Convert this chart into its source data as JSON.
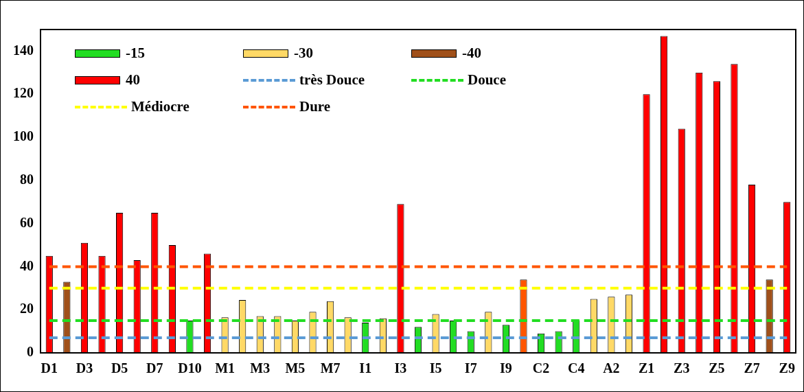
{
  "chart_data": {
    "type": "bar",
    "categories": [
      "D1",
      null,
      "D3",
      null,
      "D5",
      null,
      "D7",
      null,
      "D10",
      null,
      "M1",
      null,
      "M3",
      null,
      "M5",
      null,
      "M7",
      null,
      "I1",
      null,
      "I3",
      null,
      "I5",
      null,
      "I7",
      null,
      "I9",
      null,
      "C2",
      null,
      "C4",
      null,
      "A2",
      null,
      "Z1",
      null,
      "Z3",
      null,
      "Z5",
      null,
      "Z7",
      null,
      "Z9"
    ],
    "series": [
      {
        "name": "-15",
        "color": "#22dd22",
        "values": [
          null,
          null,
          null,
          null,
          null,
          null,
          null,
          null,
          15,
          null,
          null,
          null,
          null,
          null,
          null,
          null,
          null,
          null,
          14,
          null,
          null,
          12,
          null,
          15,
          10,
          null,
          13,
          null,
          9,
          10,
          15,
          null,
          null,
          null,
          null,
          null,
          null,
          null,
          null,
          null,
          null,
          null,
          null
        ]
      },
      {
        "name": "-30",
        "color": "#ffd966",
        "values": [
          null,
          null,
          null,
          null,
          null,
          null,
          null,
          null,
          null,
          null,
          16.5,
          24.5,
          17,
          17,
          15,
          19,
          24,
          16.5,
          null,
          16,
          null,
          null,
          18,
          null,
          null,
          19,
          null,
          null,
          null,
          null,
          null,
          25,
          26,
          27,
          null,
          null,
          null,
          null,
          null,
          null,
          null,
          null,
          null
        ]
      },
      {
        "name": "-40",
        "color": "#a0501a",
        "colors": [
          null,
          "#a0501a",
          null,
          null,
          null,
          null,
          null,
          null,
          null,
          null,
          null,
          null,
          null,
          null,
          null,
          null,
          null,
          null,
          null,
          null,
          null,
          null,
          null,
          null,
          null,
          null,
          null,
          "#ff5500",
          null,
          null,
          null,
          null,
          null,
          null,
          null,
          null,
          null,
          null,
          null,
          null,
          null,
          "#a0501a",
          null
        ],
        "values": [
          null,
          33,
          null,
          null,
          null,
          null,
          null,
          null,
          null,
          null,
          null,
          null,
          null,
          null,
          null,
          null,
          null,
          null,
          null,
          null,
          null,
          null,
          null,
          null,
          null,
          null,
          null,
          34,
          null,
          null,
          null,
          null,
          null,
          null,
          null,
          null,
          null,
          null,
          null,
          null,
          null,
          34,
          null
        ]
      },
      {
        "name": "40",
        "color": "#ff0000",
        "values": [
          45,
          null,
          51,
          45,
          65,
          43,
          65,
          50,
          null,
          46,
          null,
          null,
          null,
          null,
          null,
          null,
          null,
          null,
          null,
          null,
          69,
          null,
          null,
          null,
          null,
          null,
          null,
          null,
          null,
          null,
          null,
          null,
          null,
          null,
          120,
          147,
          104,
          130,
          126,
          134,
          78,
          null,
          70
        ]
      }
    ],
    "ref_lines": [
      {
        "axis": "y",
        "value": 7,
        "label": "très Douce",
        "color": "#5b9bd5",
        "line_style": "dashed"
      },
      {
        "axis": "y",
        "value": 15,
        "label": "Douce",
        "color": "#22dd22",
        "line_style": "dashed"
      },
      {
        "axis": "y",
        "value": 30,
        "label": "Médiocre",
        "color": "#ffff00",
        "line_style": "dashed"
      },
      {
        "axis": "y",
        "value": 40,
        "label": "Dure",
        "color": "#ff5500",
        "line_style": "dashed"
      }
    ],
    "ylim": [
      0,
      150
    ],
    "yticks": [
      0,
      20,
      40,
      60,
      80,
      100,
      120,
      140
    ],
    "grid": false,
    "legend": "top left"
  }
}
